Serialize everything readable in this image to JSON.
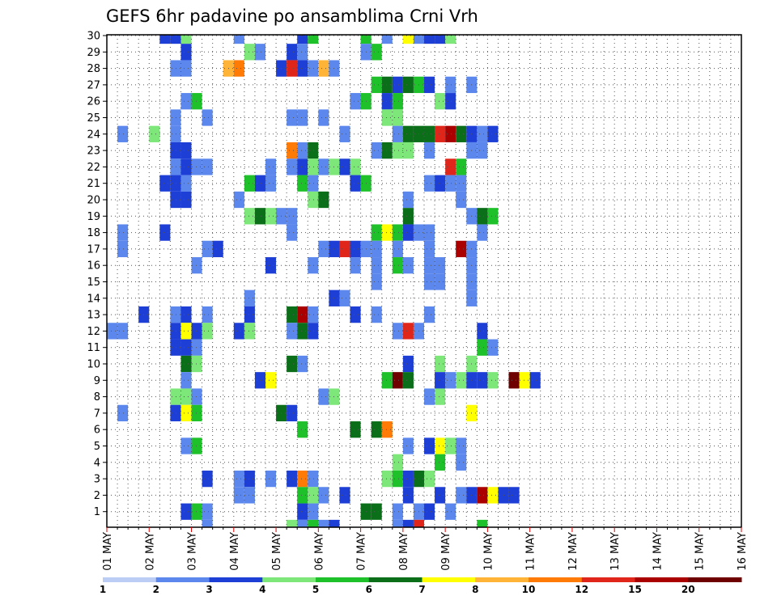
{
  "chart_data": {
    "type": "heatmap",
    "title": "GEFS 6hr padavine po ansamblima Crni Vrh",
    "x_ticks": [
      "01 MAY",
      "02 MAY",
      "03 MAY",
      "04 MAY",
      "05 MAY",
      "06 MAY",
      "07 MAY",
      "08 MAY",
      "09 MAY",
      "10 MAY",
      "11 MAY",
      "12 MAY",
      "13 MAY",
      "14 MAY",
      "15 MAY",
      "16 MAY"
    ],
    "y_ticks": [
      1,
      2,
      3,
      4,
      5,
      6,
      7,
      8,
      9,
      10,
      11,
      12,
      13,
      14,
      15,
      16,
      17,
      18,
      19,
      20,
      21,
      22,
      23,
      24,
      25,
      26,
      27,
      28,
      29,
      30
    ],
    "x_unit": "6h steps",
    "steps_per_day": 4,
    "grid": true,
    "colorbar": {
      "ticks": [
        "1",
        "2",
        "3",
        "4",
        "5",
        "6",
        "7",
        "8",
        "10",
        "12",
        "15",
        "20"
      ],
      "colors": [
        "#bccdf5",
        "#5c88ee",
        "#1e3fd6",
        "#7de77a",
        "#1fc12a",
        "#0a6f18",
        "#ffff00",
        "#ffb437",
        "#ff7b05",
        "#e0261b",
        "#aa0000",
        "#6f0000"
      ]
    },
    "cells": [
      [
        30,
        5,
        2
      ],
      [
        30,
        6,
        2
      ],
      [
        30,
        7,
        3
      ],
      [
        30,
        12,
        1
      ],
      [
        30,
        18,
        2
      ],
      [
        30,
        19,
        4
      ],
      [
        30,
        24,
        4
      ],
      [
        30,
        26,
        1
      ],
      [
        30,
        28,
        6
      ],
      [
        30,
        29,
        1
      ],
      [
        30,
        30,
        2
      ],
      [
        30,
        31,
        2
      ],
      [
        30,
        32,
        3
      ],
      [
        29,
        7,
        2
      ],
      [
        29,
        13,
        3
      ],
      [
        29,
        14,
        1
      ],
      [
        29,
        17,
        2
      ],
      [
        29,
        18,
        1
      ],
      [
        29,
        24,
        1
      ],
      [
        29,
        25,
        4
      ],
      [
        28,
        6,
        1
      ],
      [
        28,
        7,
        1
      ],
      [
        28,
        11,
        7
      ],
      [
        28,
        12,
        8
      ],
      [
        28,
        16,
        2
      ],
      [
        28,
        17,
        9
      ],
      [
        28,
        18,
        2
      ],
      [
        28,
        19,
        1
      ],
      [
        28,
        20,
        7
      ],
      [
        28,
        21,
        1
      ],
      [
        27,
        25,
        4
      ],
      [
        27,
        26,
        5
      ],
      [
        27,
        27,
        2
      ],
      [
        27,
        28,
        5
      ],
      [
        27,
        29,
        4
      ],
      [
        27,
        30,
        2
      ],
      [
        27,
        32,
        1
      ],
      [
        27,
        34,
        1
      ],
      [
        26,
        7,
        1
      ],
      [
        26,
        8,
        4
      ],
      [
        26,
        23,
        1
      ],
      [
        26,
        24,
        4
      ],
      [
        26,
        26,
        2
      ],
      [
        26,
        27,
        4
      ],
      [
        26,
        31,
        3
      ],
      [
        26,
        32,
        2
      ],
      [
        25,
        6,
        1
      ],
      [
        25,
        9,
        1
      ],
      [
        25,
        17,
        1
      ],
      [
        25,
        18,
        1
      ],
      [
        25,
        20,
        1
      ],
      [
        25,
        26,
        3
      ],
      [
        25,
        27,
        3
      ],
      [
        24,
        1,
        1
      ],
      [
        24,
        4,
        3
      ],
      [
        24,
        6,
        1
      ],
      [
        24,
        22,
        1
      ],
      [
        24,
        27,
        1
      ],
      [
        24,
        28,
        5
      ],
      [
        24,
        29,
        5
      ],
      [
        24,
        30,
        5
      ],
      [
        24,
        31,
        9
      ],
      [
        24,
        32,
        10
      ],
      [
        24,
        33,
        5
      ],
      [
        24,
        34,
        2
      ],
      [
        24,
        35,
        1
      ],
      [
        24,
        36,
        2
      ],
      [
        23,
        6,
        2
      ],
      [
        23,
        7,
        2
      ],
      [
        23,
        17,
        8
      ],
      [
        23,
        18,
        1
      ],
      [
        23,
        19,
        5
      ],
      [
        23,
        25,
        1
      ],
      [
        23,
        26,
        5
      ],
      [
        23,
        27,
        3
      ],
      [
        23,
        28,
        3
      ],
      [
        23,
        30,
        1
      ],
      [
        23,
        34,
        1
      ],
      [
        23,
        35,
        1
      ],
      [
        22,
        6,
        1
      ],
      [
        22,
        7,
        2
      ],
      [
        22,
        8,
        1
      ],
      [
        22,
        9,
        1
      ],
      [
        22,
        15,
        1
      ],
      [
        22,
        17,
        1
      ],
      [
        22,
        18,
        2
      ],
      [
        22,
        19,
        3
      ],
      [
        22,
        20,
        1
      ],
      [
        22,
        21,
        3
      ],
      [
        22,
        22,
        2
      ],
      [
        22,
        23,
        3
      ],
      [
        22,
        32,
        9
      ],
      [
        22,
        33,
        4
      ],
      [
        21,
        5,
        2
      ],
      [
        21,
        6,
        2
      ],
      [
        21,
        7,
        1
      ],
      [
        21,
        13,
        4
      ],
      [
        21,
        14,
        2
      ],
      [
        21,
        15,
        1
      ],
      [
        21,
        18,
        4
      ],
      [
        21,
        19,
        1
      ],
      [
        21,
        23,
        2
      ],
      [
        21,
        24,
        4
      ],
      [
        21,
        30,
        1
      ],
      [
        21,
        31,
        2
      ],
      [
        21,
        32,
        1
      ],
      [
        21,
        33,
        1
      ],
      [
        20,
        6,
        2
      ],
      [
        20,
        7,
        2
      ],
      [
        20,
        12,
        1
      ],
      [
        20,
        19,
        3
      ],
      [
        20,
        20,
        5
      ],
      [
        20,
        28,
        1
      ],
      [
        20,
        33,
        1
      ],
      [
        19,
        13,
        3
      ],
      [
        19,
        14,
        5
      ],
      [
        19,
        15,
        3
      ],
      [
        19,
        16,
        1
      ],
      [
        19,
        17,
        1
      ],
      [
        19,
        28,
        5
      ],
      [
        19,
        34,
        1
      ],
      [
        19,
        35,
        5
      ],
      [
        19,
        36,
        4
      ],
      [
        18,
        1,
        1
      ],
      [
        18,
        5,
        2
      ],
      [
        18,
        17,
        1
      ],
      [
        18,
        25,
        4
      ],
      [
        18,
        26,
        6
      ],
      [
        18,
        27,
        4
      ],
      [
        18,
        28,
        2
      ],
      [
        18,
        29,
        1
      ],
      [
        18,
        30,
        1
      ],
      [
        18,
        35,
        1
      ],
      [
        17,
        1,
        1
      ],
      [
        17,
        9,
        1
      ],
      [
        17,
        10,
        2
      ],
      [
        17,
        20,
        1
      ],
      [
        17,
        21,
        2
      ],
      [
        17,
        22,
        9
      ],
      [
        17,
        23,
        2
      ],
      [
        17,
        24,
        1
      ],
      [
        17,
        25,
        1
      ],
      [
        17,
        27,
        1
      ],
      [
        17,
        30,
        1
      ],
      [
        17,
        33,
        10
      ],
      [
        17,
        34,
        1
      ],
      [
        16,
        8,
        1
      ],
      [
        16,
        15,
        2
      ],
      [
        16,
        19,
        1
      ],
      [
        16,
        23,
        1
      ],
      [
        16,
        25,
        1
      ],
      [
        16,
        27,
        4
      ],
      [
        16,
        28,
        1
      ],
      [
        16,
        30,
        1
      ],
      [
        16,
        31,
        1
      ],
      [
        16,
        34,
        1
      ],
      [
        15,
        25,
        1
      ],
      [
        15,
        30,
        1
      ],
      [
        15,
        31,
        1
      ],
      [
        15,
        34,
        1
      ],
      [
        14,
        13,
        1
      ],
      [
        14,
        21,
        2
      ],
      [
        14,
        22,
        1
      ],
      [
        14,
        34,
        1
      ],
      [
        13,
        3,
        2
      ],
      [
        13,
        6,
        1
      ],
      [
        13,
        7,
        2
      ],
      [
        13,
        9,
        1
      ],
      [
        13,
        13,
        2
      ],
      [
        13,
        17,
        5
      ],
      [
        13,
        18,
        10
      ],
      [
        13,
        19,
        1
      ],
      [
        13,
        23,
        2
      ],
      [
        13,
        25,
        1
      ],
      [
        13,
        30,
        1
      ],
      [
        12,
        0,
        1
      ],
      [
        12,
        1,
        1
      ],
      [
        12,
        6,
        2
      ],
      [
        12,
        7,
        6
      ],
      [
        12,
        8,
        2
      ],
      [
        12,
        9,
        3
      ],
      [
        12,
        12,
        2
      ],
      [
        12,
        13,
        3
      ],
      [
        12,
        17,
        1
      ],
      [
        12,
        18,
        5
      ],
      [
        12,
        19,
        2
      ],
      [
        12,
        27,
        1
      ],
      [
        12,
        28,
        9
      ],
      [
        12,
        29,
        1
      ],
      [
        12,
        35,
        2
      ],
      [
        11,
        6,
        2
      ],
      [
        11,
        7,
        2
      ],
      [
        11,
        8,
        1
      ],
      [
        11,
        35,
        4
      ],
      [
        11,
        36,
        1
      ],
      [
        10,
        7,
        5
      ],
      [
        10,
        8,
        3
      ],
      [
        10,
        17,
        5
      ],
      [
        10,
        18,
        1
      ],
      [
        10,
        28,
        2
      ],
      [
        10,
        31,
        3
      ],
      [
        10,
        34,
        3
      ],
      [
        9,
        7,
        1
      ],
      [
        9,
        14,
        2
      ],
      [
        9,
        15,
        6
      ],
      [
        9,
        26,
        4
      ],
      [
        9,
        27,
        11
      ],
      [
        9,
        28,
        5
      ],
      [
        9,
        31,
        2
      ],
      [
        9,
        32,
        1
      ],
      [
        9,
        33,
        3
      ],
      [
        9,
        34,
        2
      ],
      [
        9,
        35,
        2
      ],
      [
        9,
        36,
        3
      ],
      [
        9,
        38,
        11
      ],
      [
        9,
        39,
        6
      ],
      [
        9,
        40,
        2
      ],
      [
        8,
        6,
        3
      ],
      [
        8,
        7,
        3
      ],
      [
        8,
        8,
        1
      ],
      [
        8,
        20,
        1
      ],
      [
        8,
        21,
        3
      ],
      [
        8,
        30,
        1
      ],
      [
        8,
        31,
        3
      ],
      [
        7,
        1,
        1
      ],
      [
        7,
        6,
        2
      ],
      [
        7,
        7,
        6
      ],
      [
        7,
        8,
        4
      ],
      [
        7,
        16,
        5
      ],
      [
        7,
        17,
        2
      ],
      [
        7,
        34,
        6
      ],
      [
        6,
        18,
        4
      ],
      [
        6,
        23,
        5
      ],
      [
        6,
        25,
        5
      ],
      [
        6,
        26,
        8
      ],
      [
        5,
        7,
        1
      ],
      [
        5,
        8,
        4
      ],
      [
        5,
        28,
        1
      ],
      [
        5,
        30,
        2
      ],
      [
        5,
        31,
        6
      ],
      [
        5,
        32,
        3
      ],
      [
        5,
        33,
        1
      ],
      [
        4,
        27,
        3
      ],
      [
        4,
        31,
        4
      ],
      [
        4,
        33,
        1
      ],
      [
        3,
        9,
        2
      ],
      [
        3,
        12,
        1
      ],
      [
        3,
        13,
        2
      ],
      [
        3,
        15,
        1
      ],
      [
        3,
        17,
        2
      ],
      [
        3,
        18,
        8
      ],
      [
        3,
        19,
        1
      ],
      [
        3,
        26,
        3
      ],
      [
        3,
        27,
        4
      ],
      [
        3,
        28,
        2
      ],
      [
        3,
        29,
        5
      ],
      [
        3,
        30,
        3
      ],
      [
        2,
        12,
        1
      ],
      [
        2,
        13,
        1
      ],
      [
        2,
        18,
        4
      ],
      [
        2,
        19,
        3
      ],
      [
        2,
        20,
        1
      ],
      [
        2,
        22,
        2
      ],
      [
        2,
        28,
        2
      ],
      [
        2,
        31,
        2
      ],
      [
        2,
        33,
        1
      ],
      [
        2,
        34,
        2
      ],
      [
        2,
        35,
        10
      ],
      [
        2,
        36,
        6
      ],
      [
        2,
        37,
        2
      ],
      [
        2,
        38,
        2
      ],
      [
        1,
        7,
        2
      ],
      [
        1,
        8,
        4
      ],
      [
        1,
        9,
        1
      ],
      [
        1,
        18,
        2
      ],
      [
        1,
        19,
        1
      ],
      [
        1,
        24,
        5
      ],
      [
        1,
        25,
        5
      ],
      [
        1,
        27,
        1
      ],
      [
        1,
        29,
        1
      ],
      [
        1,
        30,
        2
      ],
      [
        1,
        32,
        1
      ],
      [
        0,
        9,
        1
      ],
      [
        0,
        17,
        3
      ],
      [
        0,
        18,
        1
      ],
      [
        0,
        19,
        4
      ],
      [
        0,
        20,
        1
      ],
      [
        0,
        21,
        2
      ],
      [
        0,
        27,
        1
      ],
      [
        0,
        28,
        2
      ],
      [
        0,
        29,
        9
      ],
      [
        0,
        35,
        4
      ]
    ]
  }
}
